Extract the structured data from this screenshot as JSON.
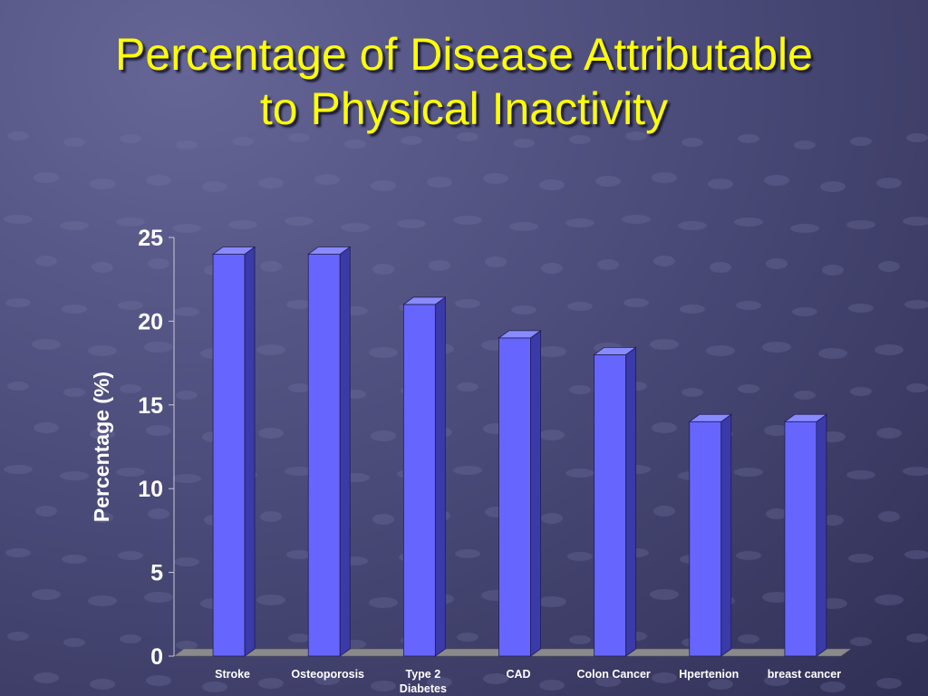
{
  "slide": {
    "title_line1": "Percentage of Disease Attributable",
    "title_line2": "to Physical Inactivity"
  },
  "colors": {
    "title": "#ffff00",
    "bar_front": "#6666ff",
    "bar_side": "#3a3aa8",
    "bar_top": "#8a8aff",
    "floor": "#8a8a8a",
    "axis_text": "#ffffff"
  },
  "chart_data": {
    "type": "bar",
    "three_d": true,
    "title": "",
    "xlabel": "",
    "ylabel": "Percentage (%)",
    "ylim": [
      0,
      25
    ],
    "yticks": [
      0,
      5,
      10,
      15,
      20,
      25
    ],
    "grid": false,
    "legend": "none",
    "categories": [
      "Stroke",
      "Osteoporosis",
      "Type 2 Diabetes",
      "CAD",
      "Colon Cancer",
      "Hpertenion",
      "breast cancer"
    ],
    "category_lines": [
      [
        "Stroke"
      ],
      [
        "Osteoporosis"
      ],
      [
        "Type 2",
        "Diabetes"
      ],
      [
        "CAD"
      ],
      [
        "Colon Cancer"
      ],
      [
        "Hpertenion"
      ],
      [
        "breast cancer"
      ]
    ],
    "values": [
      24,
      24,
      21,
      19,
      18,
      14,
      14
    ]
  }
}
